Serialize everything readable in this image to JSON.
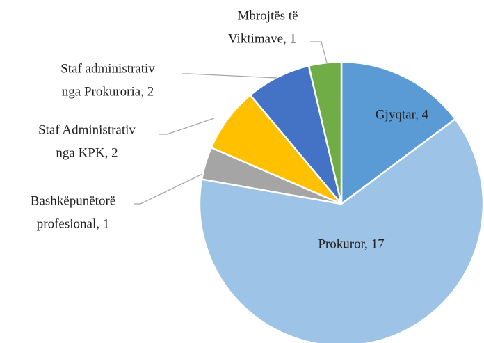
{
  "chart_data": {
    "type": "pie",
    "labels": [
      [
        "Gjyqtar, 4"
      ],
      [
        "Prokuror, 17"
      ],
      [
        "Bashkëpunëtorë",
        "profesional, 1"
      ],
      [
        "Staf Administrativ",
        "nga KPK, 2"
      ],
      [
        "Staf administrativ",
        "nga Prokuroria, 2"
      ],
      [
        "Mbrojtës të",
        "Viktimave, 1"
      ]
    ],
    "values": [
      4,
      17,
      1,
      2,
      2,
      1
    ],
    "colors": [
      "#5b9bd5",
      "#9dc3e6",
      "#a5a5a5",
      "#ffc000",
      "#4472c4",
      "#70ad47"
    ]
  }
}
